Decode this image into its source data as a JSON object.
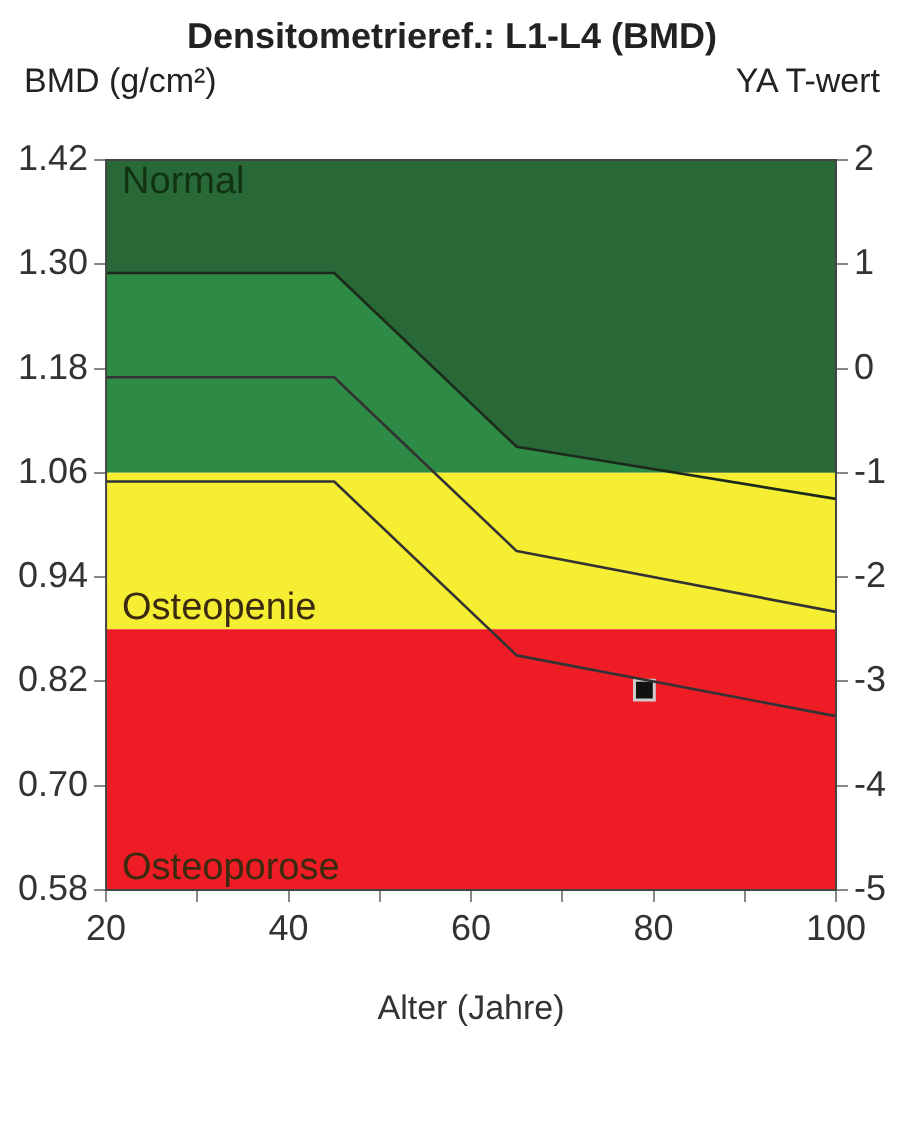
{
  "chart_data": {
    "type": "line",
    "title": "Densitometrieref.: L1-L4 (BMD)",
    "xlabel": "Alter (Jahre)",
    "ylabel": "BMD (g/cm²)",
    "y2label": "YA T-wert",
    "series": [
      {
        "color": "#1c2a1c",
        "x": [
          20,
          45,
          65,
          100
        ],
        "values": [
          1.29,
          1.29,
          1.09,
          1.03
        ],
        "lower": [
          1.29,
          1.29,
          1.09,
          1.03
        ],
        "upper": [
          1.42,
          1.42,
          1.42,
          1.42
        ]
      },
      {
        "color": "#333333",
        "x": [
          20,
          45,
          65,
          100
        ],
        "values": [
          1.17,
          1.17,
          0.97,
          0.9
        ]
      },
      {
        "color": "#333333",
        "x": [
          20,
          45,
          65,
          100
        ],
        "values": [
          1.05,
          1.05,
          0.85,
          0.78
        ]
      },
      {
        "type": "scatter",
        "color": "#111111",
        "marker": "square",
        "x": [
          79
        ],
        "values": [
          0.81
        ]
      }
    ],
    "bands": [
      {
        "axis": "y",
        "from": 1.06,
        "to": 1.42,
        "label": "Normal",
        "color": "#2e8b45"
      },
      {
        "axis": "y",
        "from": 0.88,
        "to": 1.06,
        "label": "Osteopenie",
        "color": "#f6ee33"
      },
      {
        "axis": "y",
        "from": 0.58,
        "to": 0.88,
        "label": "Osteoporose",
        "color": "#ee1c25"
      }
    ],
    "xlim": [
      20,
      100
    ],
    "xticks": [
      20,
      {
        "value": 30,
        "label": null
      },
      40,
      {
        "value": 50,
        "label": null
      },
      60,
      {
        "value": 70,
        "label": null
      },
      80,
      {
        "value": 90,
        "label": null
      },
      100
    ],
    "ylim": [
      0.58,
      1.42
    ],
    "yticks": [
      {
        "value": 0.58,
        "label": "0.58"
      },
      {
        "value": 0.7,
        "label": "0.70"
      },
      {
        "value": 0.82,
        "label": "0.82"
      },
      {
        "value": 0.94,
        "label": "0.94"
      },
      {
        "value": 1.06,
        "label": "1.06"
      },
      {
        "value": 1.18,
        "label": "1.18"
      },
      {
        "value": 1.3,
        "label": "1.30"
      },
      {
        "value": 1.42,
        "label": "1.42"
      }
    ],
    "y2lim": [
      -5,
      2
    ],
    "y2ticks": [
      -5,
      -4,
      -3,
      -2,
      -1,
      0,
      1,
      2
    ],
    "grid": false,
    "legend": false,
    "line_style": "solid"
  }
}
